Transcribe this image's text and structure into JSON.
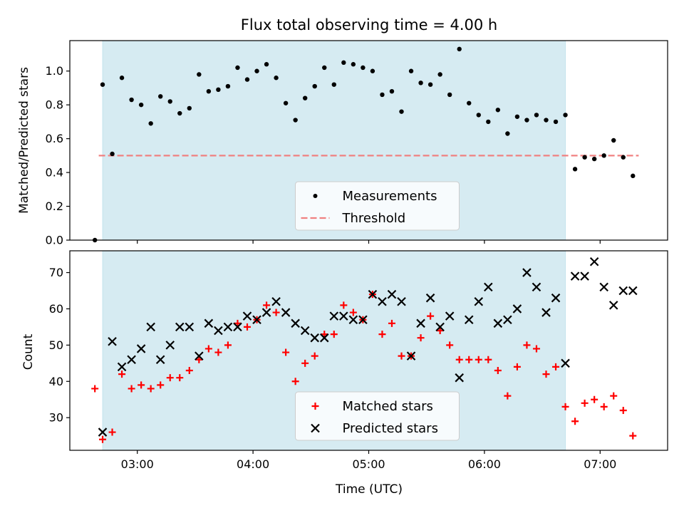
{
  "chart_data": [
    {
      "type": "scatter",
      "title": "Flux total observing time = 4.00 h",
      "ylabel": "Matched/Predicted stars",
      "xlabel": "",
      "ylim": [
        0.0,
        1.18
      ],
      "xlim": [
        "02:25",
        "07:35"
      ],
      "yticks": [
        0.0,
        0.2,
        0.4,
        0.6,
        0.8,
        1.0
      ],
      "grid": false,
      "legend": "bottom-center",
      "shaded_span": [
        "02:42",
        "06:42"
      ],
      "threshold_line": {
        "name": "Threshold",
        "value": 0.5,
        "x_range": [
          "02:40",
          "07:20"
        ],
        "color": "#f08080",
        "style": "dashed"
      },
      "series": [
        {
          "name": "Measurements",
          "color": "#000000",
          "marker": "dot",
          "x": [
            "02:38",
            "02:42",
            "02:47",
            "02:52",
            "02:57",
            "03:02",
            "03:07",
            "03:12",
            "03:17",
            "03:22",
            "03:27",
            "03:32",
            "03:37",
            "03:42",
            "03:47",
            "03:52",
            "03:57",
            "04:02",
            "04:07",
            "04:12",
            "04:17",
            "04:22",
            "04:27",
            "04:32",
            "04:37",
            "04:42",
            "04:47",
            "04:52",
            "04:57",
            "05:02",
            "05:07",
            "05:12",
            "05:17",
            "05:22",
            "05:27",
            "05:32",
            "05:37",
            "05:42",
            "05:47",
            "05:52",
            "05:57",
            "06:02",
            "06:07",
            "06:12",
            "06:17",
            "06:22",
            "06:27",
            "06:32",
            "06:37",
            "06:42",
            "06:47",
            "06:52",
            "06:57",
            "07:02",
            "07:07",
            "07:12",
            "07:17"
          ],
          "y": [
            0.0,
            0.92,
            0.51,
            0.96,
            0.83,
            0.8,
            0.69,
            0.85,
            0.82,
            0.75,
            0.78,
            0.98,
            0.88,
            0.89,
            0.91,
            1.02,
            0.95,
            1.0,
            1.04,
            0.96,
            0.81,
            0.71,
            0.84,
            0.91,
            1.02,
            0.92,
            1.05,
            1.04,
            1.02,
            1.0,
            0.86,
            0.88,
            0.76,
            1.0,
            0.93,
            0.92,
            0.98,
            0.86,
            1.13,
            0.81,
            0.74,
            0.7,
            0.77,
            0.63,
            0.73,
            0.71,
            0.74,
            0.71,
            0.7,
            0.74,
            0.42,
            0.49,
            0.48,
            0.5,
            0.59,
            0.49,
            0.38
          ]
        }
      ]
    },
    {
      "type": "scatter",
      "title": "",
      "ylabel": "Count",
      "xlabel": "Time (UTC)",
      "ylim": [
        21,
        76
      ],
      "xlim": [
        "02:25",
        "07:35"
      ],
      "yticks": [
        30,
        40,
        50,
        60,
        70
      ],
      "xticks": [
        "03:00",
        "04:00",
        "05:00",
        "06:00",
        "07:00"
      ],
      "grid": false,
      "legend": "bottom-center",
      "shaded_span": [
        "02:42",
        "06:42"
      ],
      "series": [
        {
          "name": "Matched stars",
          "color": "#ff0000",
          "marker": "plus",
          "x": [
            "02:38",
            "02:42",
            "02:47",
            "02:52",
            "02:57",
            "03:02",
            "03:07",
            "03:12",
            "03:17",
            "03:22",
            "03:27",
            "03:32",
            "03:37",
            "03:42",
            "03:47",
            "03:52",
            "03:57",
            "04:02",
            "04:07",
            "04:12",
            "04:17",
            "04:22",
            "04:27",
            "04:32",
            "04:37",
            "04:42",
            "04:47",
            "04:52",
            "04:57",
            "05:02",
            "05:07",
            "05:12",
            "05:17",
            "05:22",
            "05:27",
            "05:32",
            "05:37",
            "05:42",
            "05:47",
            "05:52",
            "05:57",
            "06:02",
            "06:07",
            "06:12",
            "06:17",
            "06:22",
            "06:27",
            "06:32",
            "06:37",
            "06:42",
            "06:47",
            "06:52",
            "06:57",
            "07:02",
            "07:07",
            "07:12",
            "07:17"
          ],
          "y": [
            38,
            24,
            26,
            42,
            38,
            39,
            38,
            39,
            41,
            41,
            43,
            46,
            49,
            48,
            50,
            56,
            55,
            57,
            61,
            59,
            48,
            40,
            45,
            47,
            53,
            53,
            61,
            59,
            57,
            64,
            53,
            56,
            47,
            47,
            52,
            58,
            54,
            50,
            46,
            46,
            46,
            46,
            43,
            36,
            44,
            50,
            49,
            42,
            44,
            33,
            29,
            34,
            35,
            33,
            36,
            32,
            25
          ]
        },
        {
          "name": "Predicted stars",
          "color": "#000000",
          "marker": "x",
          "x": [
            "02:42",
            "02:47",
            "02:52",
            "02:57",
            "03:02",
            "03:07",
            "03:12",
            "03:17",
            "03:22",
            "03:27",
            "03:32",
            "03:37",
            "03:42",
            "03:47",
            "03:52",
            "03:57",
            "04:02",
            "04:07",
            "04:12",
            "04:17",
            "04:22",
            "04:27",
            "04:32",
            "04:37",
            "04:42",
            "04:47",
            "04:52",
            "04:57",
            "05:02",
            "05:07",
            "05:12",
            "05:17",
            "05:22",
            "05:27",
            "05:32",
            "05:37",
            "05:42",
            "05:47",
            "05:52",
            "05:57",
            "06:02",
            "06:07",
            "06:12",
            "06:17",
            "06:22",
            "06:27",
            "06:32",
            "06:37",
            "06:42",
            "06:47",
            "06:52",
            "06:57",
            "07:02",
            "07:07",
            "07:12",
            "07:17"
          ],
          "y": [
            26,
            51,
            44,
            46,
            49,
            55,
            46,
            50,
            55,
            55,
            47,
            56,
            54,
            55,
            55,
            58,
            57,
            59,
            62,
            59,
            56,
            54,
            52,
            52,
            58,
            58,
            57,
            57,
            64,
            62,
            64,
            62,
            47,
            56,
            63,
            55,
            58,
            41,
            57,
            62,
            66,
            56,
            57,
            60,
            70,
            66,
            59,
            63,
            45,
            69,
            69,
            73,
            66,
            61,
            65,
            65
          ]
        }
      ]
    }
  ]
}
